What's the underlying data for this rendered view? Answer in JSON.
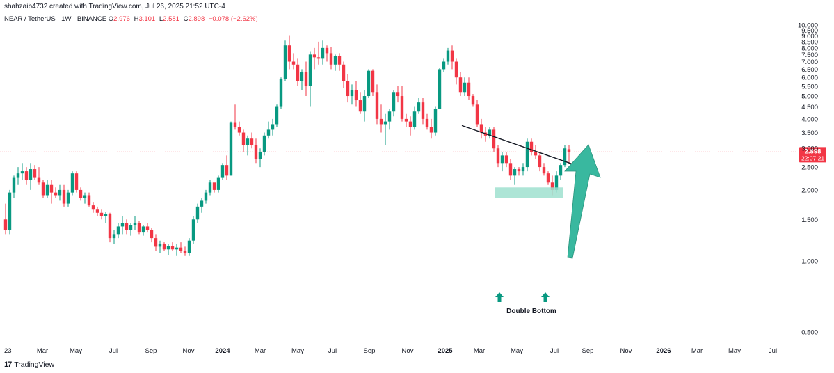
{
  "header": {
    "created_line": "shahzaib4732 created with TradingView.com, Jul 26, 2025 21:52 UTC-4",
    "symbol_line": "NEAR / TetherUS · 1W · BINANCE",
    "ohlc": {
      "o_label": "O",
      "o": "2.976",
      "h_label": "H",
      "h": "3.101",
      "l_label": "L",
      "l": "2.581",
      "c_label": "C",
      "c": "2.898",
      "change": "−0.078 (−2.62%)"
    }
  },
  "footer": {
    "brand": "TradingView",
    "logo_icon": "tradingview-logo-icon"
  },
  "colors": {
    "up": "#089981",
    "down": "#f23645",
    "price_line": "#f23645",
    "arrow": "#2fb59a",
    "zone": "#9fe0cf"
  },
  "price_badge": {
    "price": "2.898",
    "countdown": "22:07:21"
  },
  "annotations": {
    "pattern_label": "Double Bottom",
    "arrow_up_icons": [
      "arrow-up-icon",
      "arrow-up-icon"
    ],
    "big_arrow_icon": "big-up-arrow-icon"
  },
  "chart_data": {
    "type": "candlestick",
    "title": "",
    "y_axis": {
      "scale": "log",
      "ticks": [
        "10.000",
        "9.500",
        "9.000",
        "8.500",
        "8.000",
        "7.500",
        "7.000",
        "6.500",
        "6.000",
        "5.500",
        "5.000",
        "4.500",
        "4.000",
        "3.500",
        "3.000",
        "2.500",
        "2.000",
        "1.500",
        "1.000",
        "0.500"
      ],
      "ylim": [
        0.4,
        10.5
      ]
    },
    "x_axis": {
      "ticks": [
        "23",
        "Mar",
        "May",
        "Jul",
        "Sep",
        "Nov",
        "2024",
        "Mar",
        "May",
        "Jul",
        "Sep",
        "Nov",
        "2025",
        "Mar",
        "May",
        "Jul",
        "Sep",
        "Nov",
        "2026",
        "Mar",
        "May",
        "Jul"
      ],
      "bold_ticks": [
        "2024",
        "2025",
        "2026"
      ]
    },
    "candles": [
      [
        1.5,
        1.75,
        1.3,
        1.35
      ],
      [
        1.35,
        2.0,
        1.3,
        1.95
      ],
      [
        1.95,
        2.3,
        1.85,
        2.25
      ],
      [
        2.25,
        2.5,
        2.1,
        2.35
      ],
      [
        2.35,
        2.6,
        2.2,
        2.4
      ],
      [
        2.4,
        2.5,
        2.1,
        2.2
      ],
      [
        2.2,
        2.6,
        2.0,
        2.45
      ],
      [
        2.45,
        2.55,
        2.2,
        2.25
      ],
      [
        2.25,
        2.5,
        2.1,
        2.15
      ],
      [
        2.15,
        2.2,
        1.85,
        1.9
      ],
      [
        1.9,
        2.2,
        1.85,
        2.1
      ],
      [
        2.1,
        2.2,
        1.75,
        1.95
      ],
      [
        1.95,
        2.05,
        1.85,
        1.9
      ],
      [
        1.9,
        2.1,
        1.8,
        2.0
      ],
      [
        2.0,
        2.1,
        1.7,
        1.75
      ],
      [
        1.75,
        2.0,
        1.7,
        1.95
      ],
      [
        1.95,
        2.4,
        1.9,
        2.35
      ],
      [
        2.35,
        2.4,
        1.95,
        2.0
      ],
      [
        2.0,
        2.05,
        1.8,
        1.85
      ],
      [
        1.85,
        1.95,
        1.75,
        1.9
      ],
      [
        1.9,
        1.95,
        1.7,
        1.72
      ],
      [
        1.72,
        1.78,
        1.6,
        1.65
      ],
      [
        1.65,
        1.7,
        1.55,
        1.6
      ],
      [
        1.6,
        1.65,
        1.5,
        1.55
      ],
      [
        1.55,
        1.62,
        1.45,
        1.58
      ],
      [
        1.58,
        1.6,
        1.2,
        1.25
      ],
      [
        1.25,
        1.35,
        1.18,
        1.3
      ],
      [
        1.3,
        1.45,
        1.25,
        1.4
      ],
      [
        1.4,
        1.55,
        1.3,
        1.45
      ],
      [
        1.45,
        1.5,
        1.3,
        1.35
      ],
      [
        1.35,
        1.45,
        1.28,
        1.42
      ],
      [
        1.42,
        1.55,
        1.35,
        1.45
      ],
      [
        1.45,
        1.48,
        1.3,
        1.32
      ],
      [
        1.32,
        1.42,
        1.28,
        1.4
      ],
      [
        1.4,
        1.45,
        1.32,
        1.35
      ],
      [
        1.35,
        1.38,
        1.2,
        1.25
      ],
      [
        1.25,
        1.3,
        1.1,
        1.15
      ],
      [
        1.15,
        1.22,
        1.08,
        1.18
      ],
      [
        1.18,
        1.2,
        1.1,
        1.12
      ],
      [
        1.12,
        1.18,
        1.06,
        1.16
      ],
      [
        1.16,
        1.2,
        1.1,
        1.12
      ],
      [
        1.12,
        1.18,
        1.05,
        1.14
      ],
      [
        1.14,
        1.2,
        1.08,
        1.1
      ],
      [
        1.1,
        1.15,
        1.05,
        1.08
      ],
      [
        1.08,
        1.25,
        1.05,
        1.22
      ],
      [
        1.22,
        1.55,
        1.18,
        1.5
      ],
      [
        1.5,
        1.75,
        1.45,
        1.7
      ],
      [
        1.7,
        1.85,
        1.6,
        1.8
      ],
      [
        1.8,
        2.0,
        1.75,
        1.95
      ],
      [
        1.95,
        2.2,
        1.9,
        2.15
      ],
      [
        2.15,
        2.1,
        1.95,
        2.0
      ],
      [
        2.0,
        2.3,
        1.95,
        2.25
      ],
      [
        2.25,
        2.6,
        2.2,
        2.55
      ],
      [
        2.55,
        2.8,
        2.2,
        2.3
      ],
      [
        2.3,
        3.9,
        2.3,
        3.85
      ],
      [
        3.85,
        4.6,
        3.6,
        3.7
      ],
      [
        3.7,
        3.9,
        3.4,
        3.5
      ],
      [
        3.5,
        3.6,
        2.9,
        3.1
      ],
      [
        3.1,
        3.4,
        2.8,
        3.3
      ],
      [
        3.3,
        3.5,
        3.0,
        3.1
      ],
      [
        3.1,
        3.3,
        2.6,
        2.7
      ],
      [
        2.7,
        3.0,
        2.5,
        2.9
      ],
      [
        2.9,
        3.5,
        2.8,
        3.4
      ],
      [
        3.4,
        3.9,
        3.3,
        3.6
      ],
      [
        3.6,
        4.0,
        3.4,
        3.8
      ],
      [
        3.8,
        4.6,
        3.7,
        4.5
      ],
      [
        4.5,
        6.0,
        4.4,
        5.9
      ],
      [
        5.9,
        8.6,
        5.8,
        8.2
      ],
      [
        8.2,
        9.0,
        6.5,
        7.0
      ],
      [
        7.0,
        7.6,
        6.5,
        6.8
      ],
      [
        6.8,
        7.2,
        5.5,
        5.8
      ],
      [
        5.8,
        6.5,
        5.3,
        6.3
      ],
      [
        6.3,
        7.0,
        5.0,
        5.5
      ],
      [
        5.5,
        7.7,
        4.5,
        7.5
      ],
      [
        7.5,
        8.0,
        6.5,
        7.3
      ],
      [
        7.3,
        8.5,
        6.8,
        7.2
      ],
      [
        7.2,
        8.6,
        6.8,
        8.0
      ],
      [
        8.0,
        8.2,
        7.0,
        7.6
      ],
      [
        7.6,
        8.1,
        6.5,
        6.8
      ],
      [
        6.8,
        7.5,
        6.4,
        7.4
      ],
      [
        7.4,
        7.6,
        6.4,
        6.8
      ],
      [
        6.8,
        7.0,
        5.4,
        5.8
      ],
      [
        5.8,
        6.2,
        4.7,
        5.0
      ],
      [
        5.0,
        5.6,
        4.6,
        5.3
      ],
      [
        5.3,
        5.8,
        4.5,
        4.8
      ],
      [
        4.8,
        5.2,
        4.2,
        4.3
      ],
      [
        4.3,
        5.3,
        3.9,
        5.0
      ],
      [
        5.0,
        6.5,
        4.9,
        6.4
      ],
      [
        6.4,
        6.5,
        5.0,
        5.2
      ],
      [
        5.2,
        5.6,
        3.8,
        4.0
      ],
      [
        4.0,
        4.6,
        3.5,
        3.8
      ],
      [
        3.8,
        4.2,
        3.1,
        3.9
      ],
      [
        3.9,
        4.4,
        3.6,
        4.3
      ],
      [
        4.3,
        5.3,
        4.1,
        5.2
      ],
      [
        5.2,
        5.5,
        4.7,
        5.0
      ],
      [
        5.0,
        5.5,
        3.9,
        4.0
      ],
      [
        4.0,
        4.2,
        3.7,
        3.9
      ],
      [
        3.9,
        4.1,
        3.4,
        3.7
      ],
      [
        3.7,
        4.5,
        3.6,
        4.3
      ],
      [
        4.3,
        4.9,
        4.2,
        4.7
      ],
      [
        4.7,
        4.9,
        3.8,
        4.0
      ],
      [
        4.0,
        4.2,
        3.6,
        3.7
      ],
      [
        3.7,
        4.0,
        3.3,
        3.5
      ],
      [
        3.5,
        4.5,
        3.4,
        4.4
      ],
      [
        4.4,
        6.6,
        4.4,
        6.5
      ],
      [
        6.5,
        7.2,
        6.3,
        7.0
      ],
      [
        7.0,
        8.0,
        6.8,
        7.8
      ],
      [
        7.8,
        8.2,
        6.5,
        7.0
      ],
      [
        7.0,
        7.2,
        5.6,
        6.0
      ],
      [
        6.0,
        6.3,
        5.0,
        5.2
      ],
      [
        5.2,
        6.0,
        5.0,
        5.7
      ],
      [
        5.7,
        6.0,
        4.8,
        5.0
      ],
      [
        5.0,
        5.1,
        4.5,
        4.6
      ],
      [
        4.6,
        4.8,
        3.7,
        3.8
      ],
      [
        3.8,
        4.0,
        3.3,
        3.5
      ],
      [
        3.5,
        3.7,
        3.2,
        3.4
      ],
      [
        3.4,
        3.7,
        3.3,
        3.6
      ],
      [
        3.6,
        3.7,
        2.9,
        3.0
      ],
      [
        3.0,
        3.1,
        2.5,
        2.6
      ],
      [
        2.6,
        2.9,
        2.4,
        2.8
      ],
      [
        2.8,
        2.9,
        2.5,
        2.6
      ],
      [
        2.6,
        2.7,
        2.2,
        2.3
      ],
      [
        2.3,
        2.5,
        2.1,
        2.45
      ],
      [
        2.45,
        2.5,
        2.3,
        2.4
      ],
      [
        2.4,
        2.6,
        2.3,
        2.5
      ],
      [
        2.5,
        3.3,
        2.4,
        3.2
      ],
      [
        3.2,
        3.3,
        2.8,
        2.9
      ],
      [
        2.9,
        3.1,
        2.7,
        2.8
      ],
      [
        2.8,
        2.9,
        2.4,
        2.5
      ],
      [
        2.5,
        2.6,
        2.3,
        2.35
      ],
      [
        2.35,
        2.4,
        2.1,
        2.15
      ],
      [
        2.15,
        2.3,
        1.9,
        2.0
      ],
      [
        2.0,
        2.4,
        1.95,
        2.3
      ],
      [
        2.3,
        2.6,
        2.2,
        2.55
      ],
      [
        2.55,
        3.1,
        2.5,
        3.0
      ],
      [
        2.976,
        3.101,
        2.581,
        2.898
      ]
    ],
    "candle_format": [
      "open",
      "high",
      "low",
      "close"
    ],
    "last_price": 2.898
  }
}
